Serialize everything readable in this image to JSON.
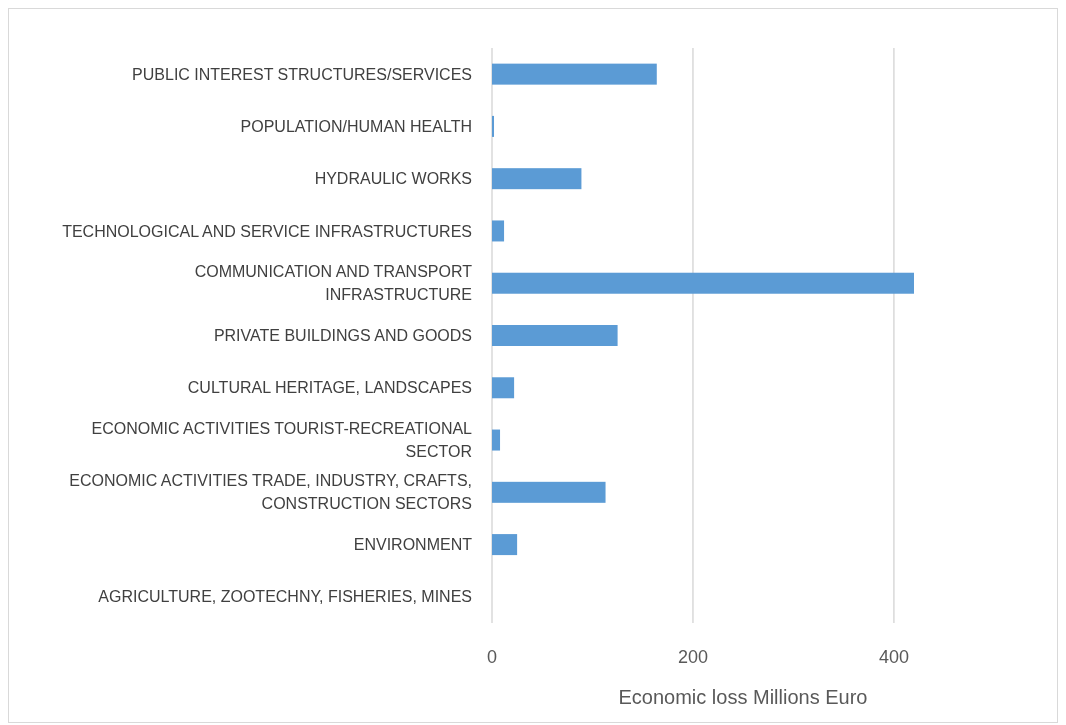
{
  "chart_data": {
    "type": "bar",
    "orientation": "horizontal",
    "xlabel": "Economic loss Millions Euro",
    "categories": [
      "PUBLIC INTEREST STRUCTURES/SERVICES",
      "POPULATION/HUMAN HEALTH",
      "HYDRAULIC WORKS",
      "TECHNOLOGICAL AND SERVICE INFRASTRUCTURES",
      "COMMUNICATION AND TRANSPORT INFRASTRUCTURE",
      "PRIVATE BUILDINGS AND  GOODS",
      "CULTURAL HERITAGE, LANDSCAPES",
      "ECONOMIC ACTIVITIES TOURIST-RECREATIONAL SECTOR",
      "ECONOMIC ACTIVITIES TRADE, INDUSTRY, CRAFTS, CONSTRUCTION SECTORS",
      "ENVIRONMENT",
      "AGRICULTURE, ZOOTECHNY, FISHERIES, MINES"
    ],
    "values": [
      164,
      2,
      89,
      12,
      420,
      125,
      22,
      8,
      113,
      25,
      0
    ],
    "color": "#5b9bd5",
    "xlim": [
      0,
      420
    ],
    "xticks": [
      0,
      200,
      400
    ],
    "grid": "x"
  }
}
